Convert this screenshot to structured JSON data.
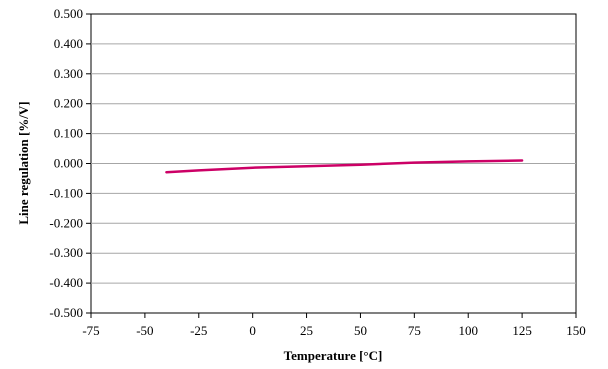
{
  "chart_data": {
    "type": "line",
    "xlabel": "Temperature [°C]",
    "ylabel": "Line regulation [%/V]",
    "xlim": [
      -75,
      150
    ],
    "ylim": [
      -0.5,
      0.5
    ],
    "x_ticks": [
      "-75",
      "-50",
      "-25",
      "0",
      "25",
      "50",
      "75",
      "100",
      "125",
      "150"
    ],
    "y_ticks": [
      "0.500",
      "0.400",
      "0.300",
      "0.200",
      "0.100",
      "0.000",
      "-0.100",
      "-0.200",
      "-0.300",
      "-0.400",
      "-0.500"
    ],
    "grid": true,
    "series": [
      {
        "color": "#cc0066",
        "x": [
          -40,
          -25,
          0,
          25,
          50,
          75,
          100,
          125
        ],
        "y": [
          -0.029,
          -0.023,
          -0.014,
          -0.009,
          -0.004,
          0.003,
          0.007,
          0.01
        ]
      }
    ]
  }
}
